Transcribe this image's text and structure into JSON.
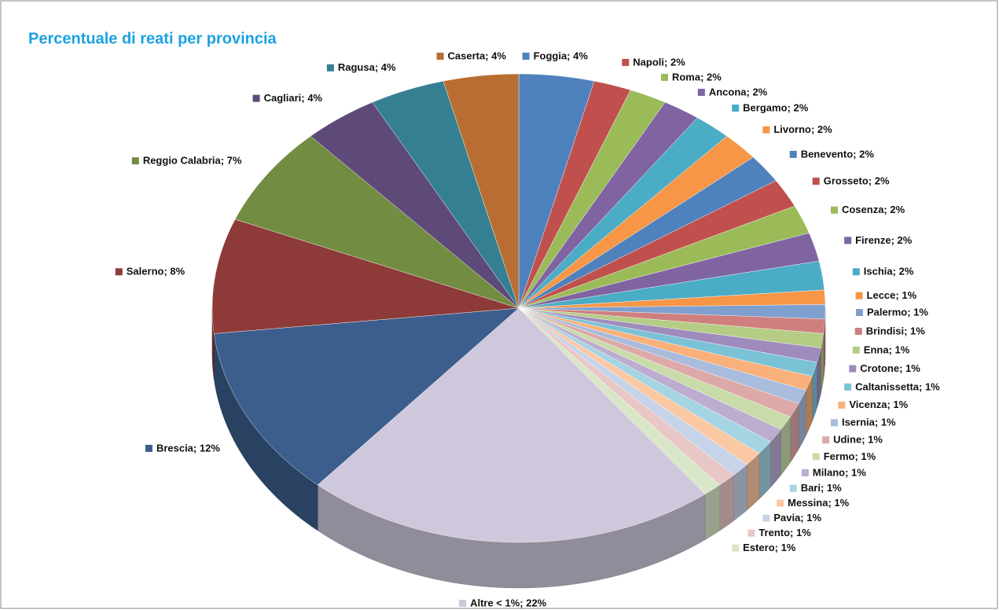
{
  "chart_data": {
    "type": "pie",
    "title": "Percentuale di reati per provincia",
    "labels": [
      "Foggia; 4%",
      "Napoli; 2%",
      "Roma; 2%",
      "Ancona; 2%",
      "Bergamo; 2%",
      "Livorno; 2%",
      "Benevento; 2%",
      "Grosseto; 2%",
      "Cosenza; 2%",
      "Firenze; 2%",
      "Ischia; 2%",
      "Lecce; 1%",
      "Palermo; 1%",
      "Brindisi; 1%",
      "Enna; 1%",
      "Crotone; 1%",
      "Caltanissetta; 1%",
      "Vicenza; 1%",
      "Isernia; 1%",
      "Udine; 1%",
      "Fermo; 1%",
      "Milano; 1%",
      "Bari; 1%",
      "Messina; 1%",
      "Pavia; 1%",
      "Trento; 1%",
      "Estero; 1%",
      "Altre < 1%; 22%",
      "Brescia; 12%",
      "Salerno; 8%",
      "Reggio Calabria; 7%",
      "Cagliari; 4%",
      "Ragusa; 4%",
      "Caserta; 4%"
    ],
    "values": [
      4,
      2,
      2,
      2,
      2,
      2,
      2,
      2,
      2,
      2,
      2,
      1,
      1,
      1,
      1,
      1,
      1,
      1,
      1,
      1,
      1,
      1,
      1,
      1,
      1,
      1,
      1,
      22,
      12,
      8,
      7,
      4,
      4,
      4
    ],
    "colors": [
      "#4f81bd",
      "#c0504d",
      "#9bbb59",
      "#8064a2",
      "#4bacc6",
      "#f79646",
      "#4f81bd",
      "#c0504d",
      "#9bbb59",
      "#8064a2",
      "#4bacc6",
      "#f79646",
      "#7f9fcf",
      "#cf7f7d",
      "#b4cc84",
      "#a08bbd",
      "#7cc2d6",
      "#f9b07a",
      "#a9bcdc",
      "#dca9a8",
      "#c9dba9",
      "#bcadd0",
      "#a5d4e2",
      "#fbc8a4",
      "#c7d3e8",
      "#e8c7c6",
      "#d9e6c7",
      "#cfc8dc",
      "#3b5e8c",
      "#8e3a38",
      "#728c42",
      "#5e4a78",
      "#357f93",
      "#b86e33"
    ]
  }
}
